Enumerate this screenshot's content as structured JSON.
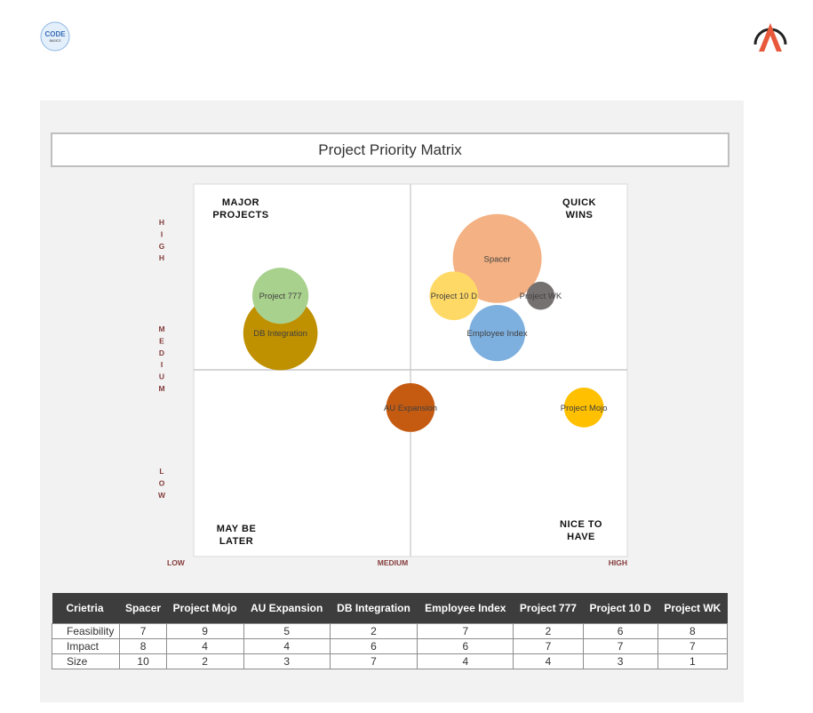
{
  "logos": {
    "left": "CODE BASICS",
    "right": "A"
  },
  "chart_data": {
    "type": "bubble",
    "title": "Project Priority Matrix",
    "xlim": [
      0,
      10
    ],
    "ylim": [
      0,
      10
    ],
    "x_axis_labels": [
      "LOW",
      "MEDIUM",
      "HIGH"
    ],
    "y_axis_labels": [
      "HIGH",
      "MEDIUM",
      "LOW"
    ],
    "quadrants": {
      "top_left": [
        "MAJOR",
        "PROJECTS"
      ],
      "top_right": [
        "QUICK",
        "WINS"
      ],
      "bottom_left": [
        "MAY BE",
        "LATER"
      ],
      "bottom_right": [
        "NICE TO",
        "HAVE"
      ]
    },
    "points": [
      {
        "name": "Spacer",
        "x": 7,
        "y": 8,
        "size": 10,
        "color": "#F4B183"
      },
      {
        "name": "Project Mojo",
        "x": 9,
        "y": 4,
        "size": 2,
        "color": "#FFC000"
      },
      {
        "name": "AU Expansion",
        "x": 5,
        "y": 4,
        "size": 3,
        "color": "#C55A11"
      },
      {
        "name": "DB Integration",
        "x": 2,
        "y": 6,
        "size": 7,
        "color": "#BF9000"
      },
      {
        "name": "Employee Index",
        "x": 7,
        "y": 6,
        "size": 4,
        "color": "#7EB0DF"
      },
      {
        "name": "Project 777",
        "x": 2,
        "y": 7,
        "size": 4,
        "color": "#A9D18E"
      },
      {
        "name": "Project 10 D",
        "x": 6,
        "y": 7,
        "size": 3,
        "color": "#FFD966"
      },
      {
        "name": "Project WK",
        "x": 8,
        "y": 7,
        "size": 1,
        "color": "#767171"
      }
    ]
  },
  "table": {
    "header": [
      "Crietria",
      "Spacer",
      "Project Mojo",
      "AU Expansion",
      "DB Integration",
      "Employee Index",
      "Project 777",
      "Project 10 D",
      "Project WK"
    ],
    "rows": [
      [
        "Feasibility",
        "7",
        "9",
        "5",
        "2",
        "7",
        "2",
        "6",
        "8"
      ],
      [
        "Impact",
        "8",
        "4",
        "4",
        "6",
        "6",
        "7",
        "7",
        "7"
      ],
      [
        "Size",
        "10",
        "2",
        "3",
        "7",
        "4",
        "4",
        "3",
        "1"
      ]
    ]
  }
}
